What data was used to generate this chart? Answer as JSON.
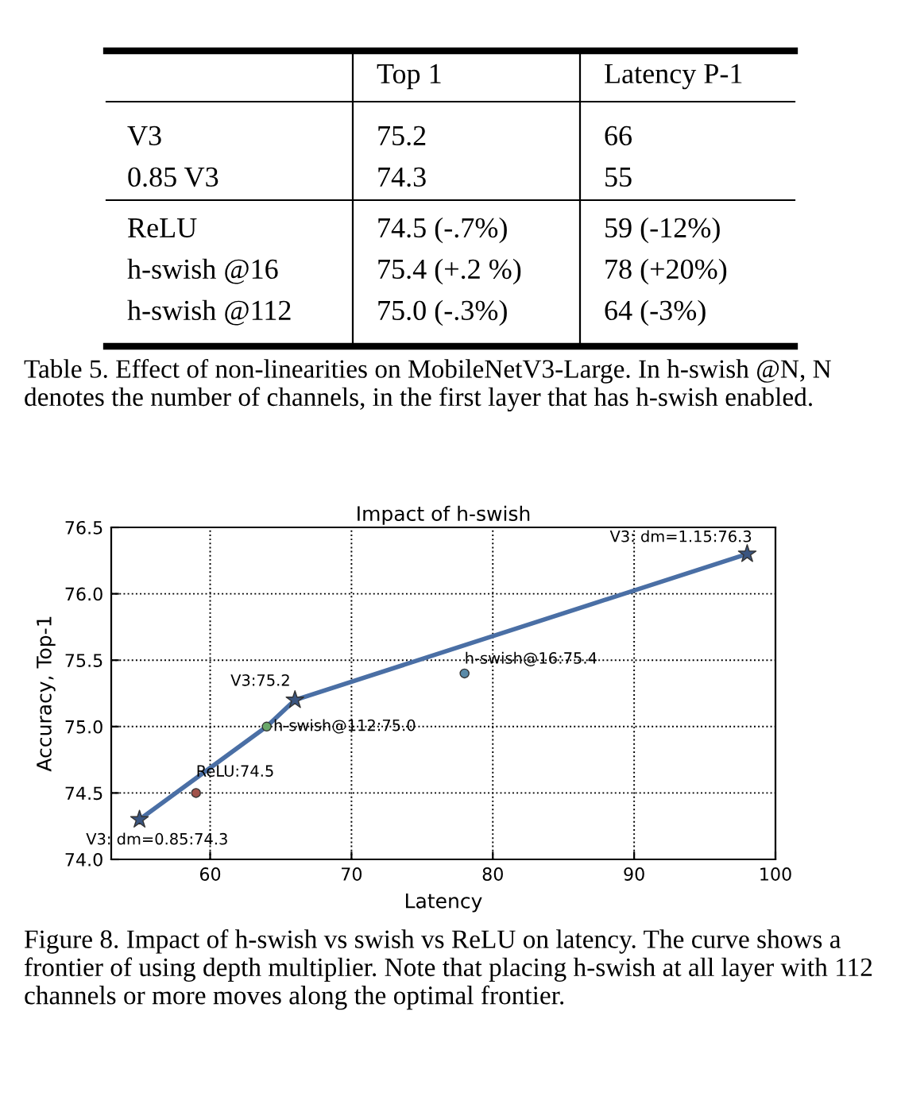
{
  "chart_data": [
    {
      "type": "other",
      "categories": [
        null,
        "Top 1",
        "Latency P-1"
      ],
      "y_categories": [
        "V3",
        "0.85 V3",
        "ReLU",
        "h-swish @16",
        "h-swish @112"
      ],
      "cell_labels": [
        [
          "75.2",
          "66"
        ],
        [
          "74.3",
          "55"
        ],
        [
          "74.5 (-.7%)",
          "59 (-12%)"
        ],
        [
          "75.4 (+.2 %)",
          "78 (+20%)"
        ],
        [
          "75.0 (-.3%)",
          "64 (-3%)"
        ]
      ],
      "annotations": [
        "Table 5. Effect of non-linearities on MobileNetV3-Large. In h-swish @N, N denotes the number of channels, in the first layer that has h-swish enabled."
      ]
    },
    {
      "type": "line",
      "title": "Impact of h-swish",
      "xlabel": "Latency",
      "ylabel": "Accuracy, Top-1",
      "xlim": [
        53,
        100
      ],
      "xticks": [
        60,
        70,
        80,
        90,
        100
      ],
      "ylim": [
        74.0,
        76.5
      ],
      "yticks": [
        {
          "value": 74,
          "label": "74.0"
        },
        74.5,
        {
          "value": 75,
          "label": "75.0"
        },
        75.5,
        {
          "value": 76,
          "label": "76.0"
        },
        76.5
      ],
      "grid": true,
      "series": [
        {
          "type": "line",
          "color": "#4a6fa5",
          "x": [
            55,
            64,
            66,
            98
          ],
          "values": [
            74.3,
            75.0,
            75.2,
            76.3
          ],
          "marker": "none"
        },
        {
          "type": "scatter",
          "color": "#3a5580",
          "x": [
            55,
            66,
            98
          ],
          "values": [
            74.3,
            75.2,
            76.3
          ],
          "marker": "star"
        },
        {
          "type": "scatter",
          "colors": [
            "#a0524a",
            "#5a8aa8",
            "#6aa86a"
          ],
          "x": [
            59,
            78,
            64
          ],
          "values": [
            74.5,
            75.4,
            75.0
          ],
          "marker": "circle"
        }
      ],
      "annotations": [
        {
          "text": "V3: dm=1.15:76.3",
          "x": 98,
          "y": 76.3
        },
        {
          "text": "h-swish@16:75.4",
          "x": 78,
          "y": 75.4
        },
        {
          "text": "V3:75.2",
          "x": 66,
          "y": 75.2
        },
        {
          "text": "h-swish@112:75.0",
          "x": 64,
          "y": 75.0
        },
        {
          "text": "ReLU:74.5",
          "x": 59,
          "y": 74.5
        },
        {
          "text": "V3: dm=0.85:74.3",
          "x": 55,
          "y": 74.3
        },
        "Figure 8. Impact of h-swish vs swish vs ReLU on latency. The curve shows a frontier of using depth multiplier. Note that placing h-swish at all layer with 112 channels or more moves along the optimal frontier."
      ]
    }
  ]
}
